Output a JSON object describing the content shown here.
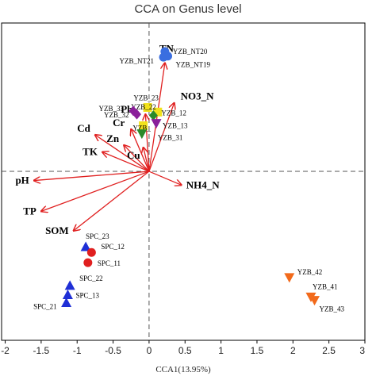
{
  "chart_data": {
    "type": "scatter",
    "title": "CCA on Genus level",
    "xlabel": "CCA1(13.95%)",
    "ylabel": "",
    "xlim": [
      -2.05,
      3.0
    ],
    "ylim": [
      -1.48,
      1.3
    ],
    "x_ticks": [
      "-2",
      "-1.5",
      "-1",
      "-0.5",
      "0",
      "0.5",
      "1",
      "1.5",
      "2",
      "2.5",
      "3"
    ],
    "colors": {
      "arrow": "#e02020",
      "tn_group": "#3a6ee0",
      "spc_triangle": "#1f2fd6",
      "spc_circle": "#e01f1f",
      "yzb4": "#f26a1b",
      "yellow": "#f2e21b",
      "purple": "#8a1f9a",
      "green": "#2a8a2a"
    },
    "env_arrows": [
      {
        "name": "TN",
        "x": 0.22,
        "y": 0.95
      },
      {
        "name": "NO3_N",
        "x": 0.35,
        "y": 0.6
      },
      {
        "name": "Pb",
        "x": -0.05,
        "y": 0.5
      },
      {
        "name": "Cr",
        "x": -0.25,
        "y": 0.37
      },
      {
        "name": "Cd",
        "x": -0.75,
        "y": 0.32
      },
      {
        "name": "Zn",
        "x": -0.35,
        "y": 0.23
      },
      {
        "name": "Cu",
        "x": -0.08,
        "y": 0.21
      },
      {
        "name": "TK",
        "x": -0.65,
        "y": 0.17
      },
      {
        "name": "NH4_N",
        "x": 0.45,
        "y": -0.12
      },
      {
        "name": "pH",
        "x": -1.6,
        "y": -0.08
      },
      {
        "name": "TP",
        "x": -1.5,
        "y": -0.35
      },
      {
        "name": "SOM",
        "x": -1.05,
        "y": -0.52
      }
    ],
    "samples": [
      {
        "name": "YZB_NT20",
        "x": 0.22,
        "y": 1.05,
        "shape": "circle",
        "color": "#3a6ee0"
      },
      {
        "name": "YZB_NT21",
        "x": 0.2,
        "y": 1.0,
        "shape": "circle",
        "color": "#3a6ee0"
      },
      {
        "name": "YZB_NT19",
        "x": 0.26,
        "y": 1.01,
        "shape": "circle",
        "color": "#3a6ee0"
      },
      {
        "name": "YZB_23",
        "x": -0.02,
        "y": 0.56,
        "shape": "square",
        "color": "#f2e21b"
      },
      {
        "name": "YZB_22",
        "x": 0.12,
        "y": 0.52,
        "shape": "square",
        "color": "#f2e21b"
      },
      {
        "name": "YZB_33",
        "x": -0.22,
        "y": 0.53,
        "shape": "diamond",
        "color": "#8a1f9a"
      },
      {
        "name": "YZB_32",
        "x": -0.17,
        "y": 0.5,
        "shape": "diamond",
        "color": "#8a1f9a"
      },
      {
        "name": "YZB_12",
        "x": 0.06,
        "y": 0.49,
        "shape": "diamond",
        "color": "#2a8a2a"
      },
      {
        "name": "YZB_13",
        "x": 0.1,
        "y": 0.42,
        "shape": "triangle-down",
        "color": "#8a1f9a"
      },
      {
        "name": "YZB_",
        "x": -0.08,
        "y": 0.4,
        "shape": "square",
        "color": "#f2e21b"
      },
      {
        "name": "YZB_31",
        "x": -0.1,
        "y": 0.33,
        "shape": "triangle-down",
        "color": "#2a8a2a"
      },
      {
        "name": "SPC_23",
        "x": -0.88,
        "y": -0.66,
        "shape": "triangle",
        "color": "#1f2fd6"
      },
      {
        "name": "SPC_12",
        "x": -0.8,
        "y": -0.71,
        "shape": "circle",
        "color": "#e01f1f"
      },
      {
        "name": "SPC_11",
        "x": -0.85,
        "y": -0.8,
        "shape": "circle",
        "color": "#e01f1f"
      },
      {
        "name": "SPC_22",
        "x": -1.1,
        "y": -1.0,
        "shape": "triangle",
        "color": "#1f2fd6"
      },
      {
        "name": "SPC_13",
        "x": -1.13,
        "y": -1.08,
        "shape": "triangle",
        "color": "#1f2fd6"
      },
      {
        "name": "SPC_21",
        "x": -1.15,
        "y": -1.15,
        "shape": "triangle",
        "color": "#1f2fd6"
      },
      {
        "name": "YZB_42",
        "x": 1.95,
        "y": -0.93,
        "shape": "triangle-down",
        "color": "#f26a1b"
      },
      {
        "name": "YZB_41",
        "x": 2.25,
        "y": -1.1,
        "shape": "triangle-down",
        "color": "#f26a1b"
      },
      {
        "name": "YZB_43",
        "x": 2.3,
        "y": -1.13,
        "shape": "triangle-down",
        "color": "#f26a1b"
      }
    ]
  }
}
